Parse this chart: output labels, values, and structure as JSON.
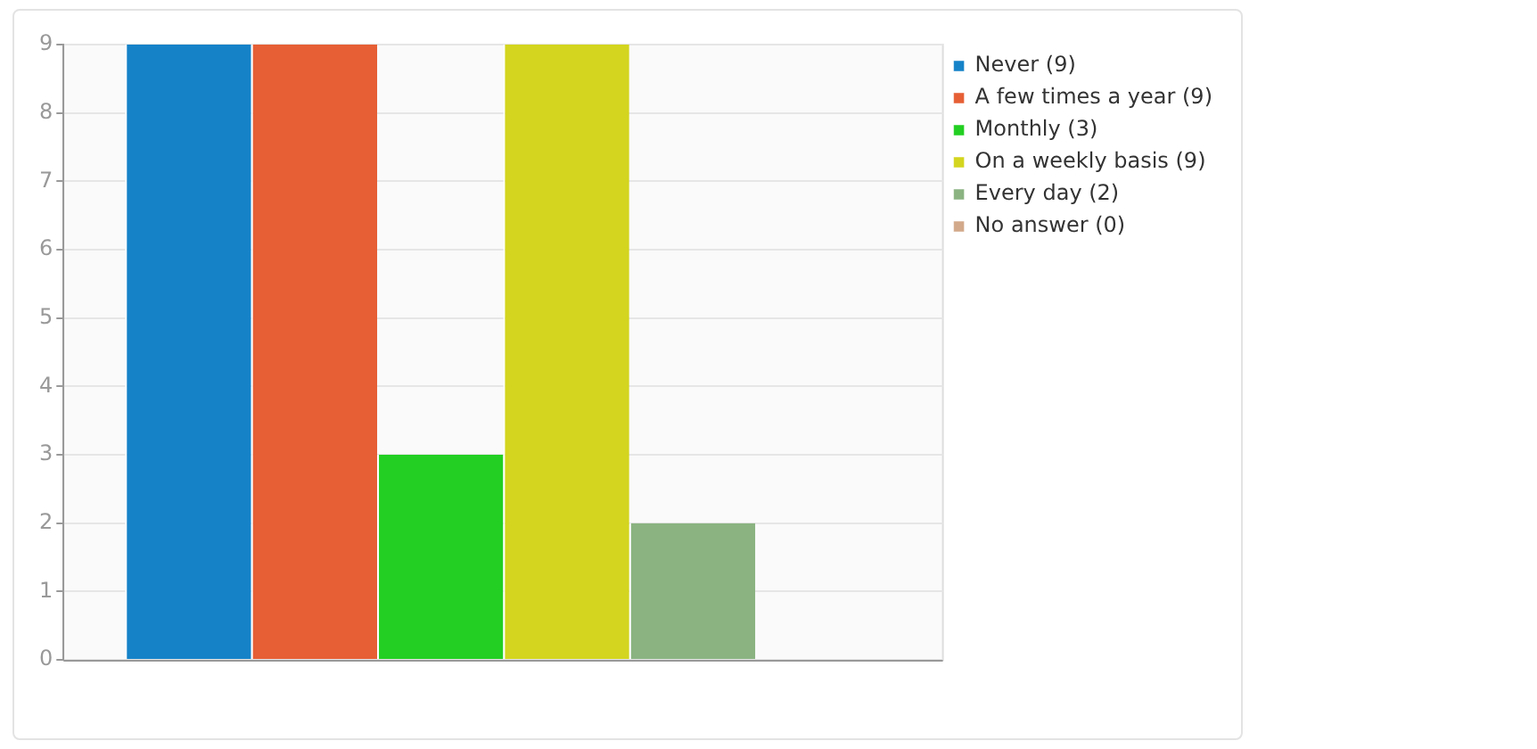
{
  "chart_data": {
    "type": "bar",
    "categories": [
      null
    ],
    "series": [
      {
        "name": "Never (9)",
        "color": "#1582c8",
        "values": [
          9
        ]
      },
      {
        "name": "A few times a year (9)",
        "color": "#e65f35",
        "values": [
          9
        ]
      },
      {
        "name": "Monthly (3)",
        "color": "#22cf22",
        "values": [
          3
        ]
      },
      {
        "name": "On a weekly basis (9)",
        "color": "#d3d51e",
        "values": [
          9
        ]
      },
      {
        "name": "Every day (2)",
        "color": "#8ab381",
        "values": [
          2
        ]
      },
      {
        "name": "No answer (0)",
        "color": "#d2a98a",
        "values": [
          0
        ]
      }
    ],
    "ylim": [
      0,
      9
    ],
    "yticks": [
      0,
      1,
      2,
      3,
      4,
      5,
      6,
      7,
      8,
      9
    ],
    "grid": "y",
    "legend": "top right"
  }
}
